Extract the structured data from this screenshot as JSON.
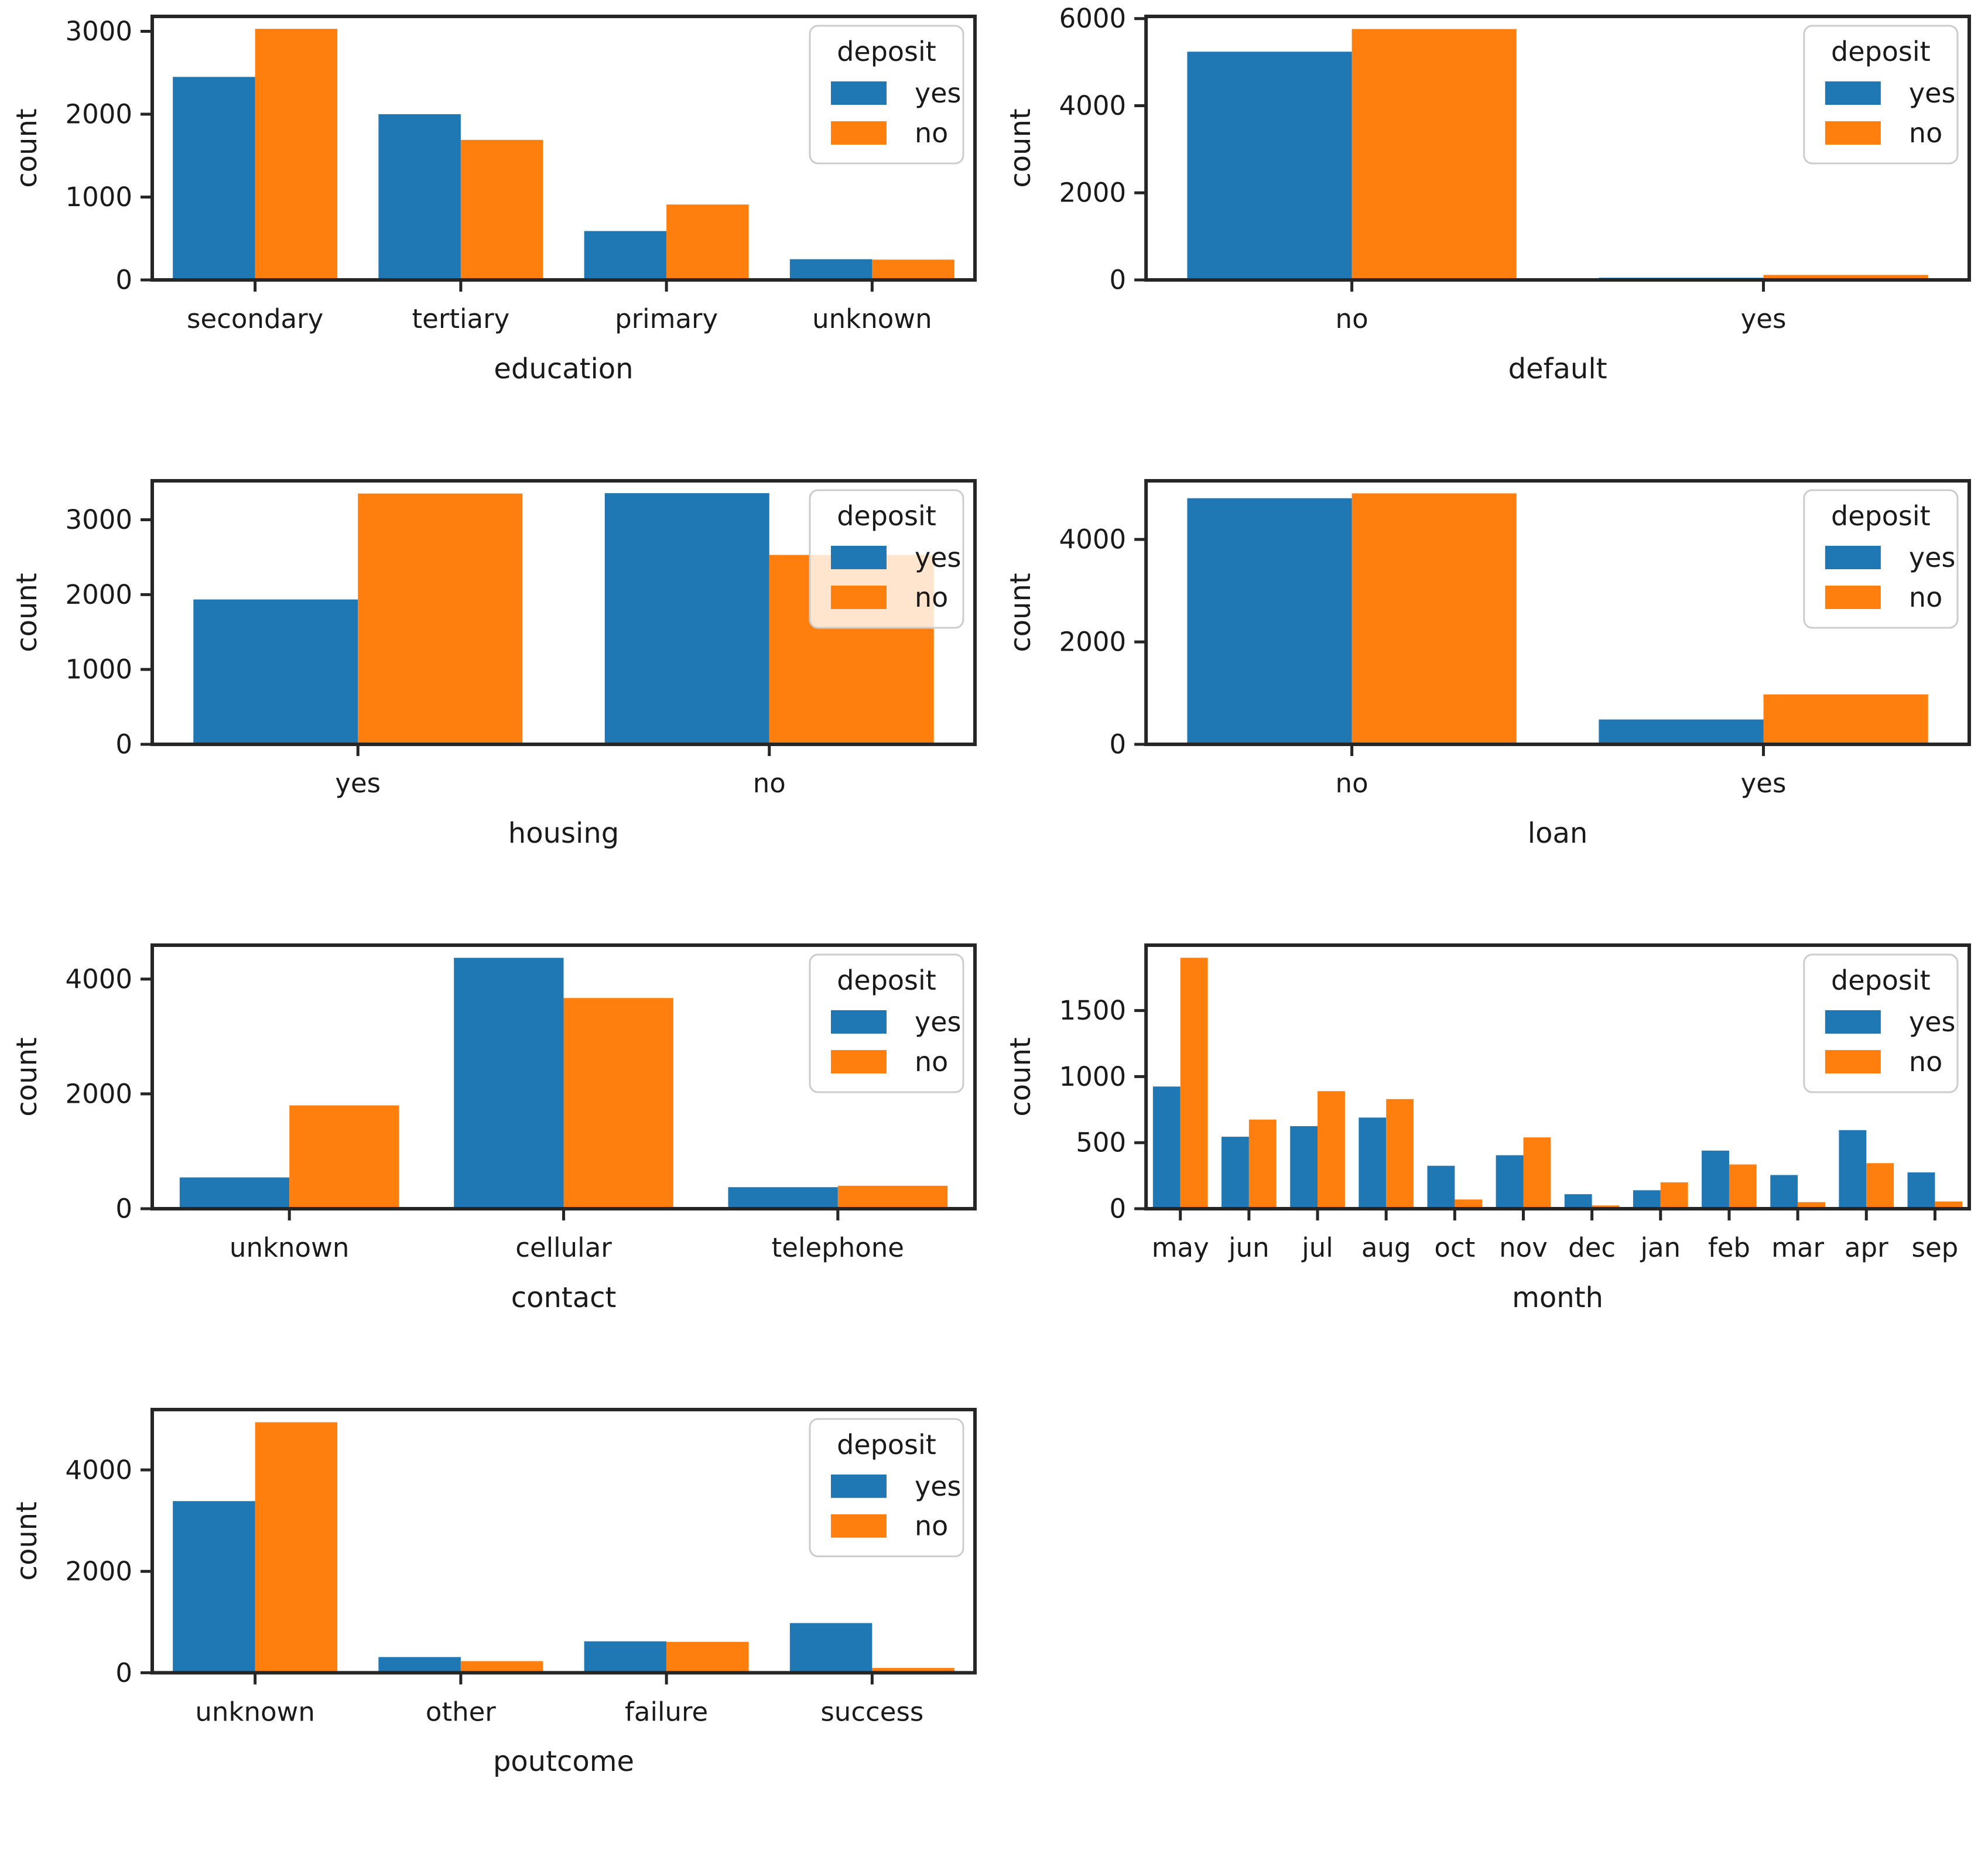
{
  "figure": {
    "background": "#ffffff",
    "rows": 4,
    "cols": 2,
    "empty_cell": "row4-col2"
  },
  "colors": {
    "yes": "#1f77b4",
    "no": "#ff7f0e",
    "text": "#1a1a1a",
    "spine": "#262626",
    "legend_border": "#cccccc",
    "legend_bg": "rgba(255,255,255,0.8)"
  },
  "legend": {
    "title": "deposit",
    "entries": [
      "yes",
      "no"
    ],
    "position": "upper right"
  },
  "chart_data": [
    {
      "type": "bar",
      "xlabel": "education",
      "ylabel": "count",
      "categories": [
        "secondary",
        "tertiary",
        "primary",
        "unknown"
      ],
      "series": [
        {
          "name": "yes",
          "values": [
            2450,
            2000,
            590,
            250
          ]
        },
        {
          "name": "no",
          "values": [
            3030,
            1690,
            910,
            245
          ]
        }
      ],
      "yticks": [
        0,
        1000,
        2000,
        3000
      ],
      "ylim": [
        0,
        3180
      ],
      "grid": false,
      "legend_position": "upper right"
    },
    {
      "type": "bar",
      "xlabel": "default",
      "ylabel": "count",
      "categories": [
        "no",
        "yes"
      ],
      "series": [
        {
          "name": "yes",
          "values": [
            5240,
            50
          ]
        },
        {
          "name": "no",
          "values": [
            5760,
            115
          ]
        }
      ],
      "yticks": [
        0,
        2000,
        4000,
        6000
      ],
      "ylim": [
        0,
        6050
      ],
      "grid": false,
      "legend_position": "upper right"
    },
    {
      "type": "bar",
      "xlabel": "housing",
      "ylabel": "count",
      "categories": [
        "yes",
        "no"
      ],
      "series": [
        {
          "name": "yes",
          "values": [
            1935,
            3355
          ]
        },
        {
          "name": "no",
          "values": [
            3350,
            2530
          ]
        }
      ],
      "yticks": [
        0,
        1000,
        2000,
        3000
      ],
      "ylim": [
        0,
        3520
      ],
      "grid": false,
      "legend_position": "upper right"
    },
    {
      "type": "bar",
      "xlabel": "loan",
      "ylabel": "count",
      "categories": [
        "no",
        "yes"
      ],
      "series": [
        {
          "name": "yes",
          "values": [
            4805,
            485
          ]
        },
        {
          "name": "no",
          "values": [
            4900,
            975
          ]
        }
      ],
      "yticks": [
        0,
        2000,
        4000
      ],
      "ylim": [
        0,
        5145
      ],
      "grid": false,
      "legend_position": "upper right"
    },
    {
      "type": "bar",
      "xlabel": "contact",
      "ylabel": "count",
      "categories": [
        "unknown",
        "cellular",
        "telephone"
      ],
      "series": [
        {
          "name": "yes",
          "values": [
            545,
            4370,
            375
          ]
        },
        {
          "name": "no",
          "values": [
            1800,
            3670,
            400
          ]
        }
      ],
      "yticks": [
        0,
        2000,
        4000
      ],
      "ylim": [
        0,
        4590
      ],
      "grid": false,
      "legend_position": "upper right"
    },
    {
      "type": "bar",
      "xlabel": "month",
      "ylabel": "count",
      "categories": [
        "may",
        "jun",
        "jul",
        "aug",
        "oct",
        "nov",
        "dec",
        "jan",
        "feb",
        "mar",
        "apr",
        "sep"
      ],
      "series": [
        {
          "name": "yes",
          "values": [
            925,
            545,
            625,
            690,
            325,
            405,
            110,
            140,
            440,
            255,
            595,
            275
          ]
        },
        {
          "name": "no",
          "values": [
            1900,
            675,
            890,
            830,
            70,
            540,
            25,
            200,
            335,
            50,
            345,
            55
          ]
        }
      ],
      "yticks": [
        0,
        500,
        1000,
        1500
      ],
      "ylim": [
        0,
        1995
      ],
      "grid": false,
      "legend_position": "upper right"
    },
    {
      "type": "bar",
      "xlabel": "poutcome",
      "ylabel": "count",
      "categories": [
        "unknown",
        "other",
        "failure",
        "success"
      ],
      "series": [
        {
          "name": "yes",
          "values": [
            3385,
            310,
            620,
            980
          ]
        },
        {
          "name": "no",
          "values": [
            4940,
            230,
            610,
            95
          ]
        }
      ],
      "yticks": [
        0,
        2000,
        4000
      ],
      "ylim": [
        0,
        5190
      ],
      "grid": false,
      "legend_position": "upper right"
    }
  ]
}
